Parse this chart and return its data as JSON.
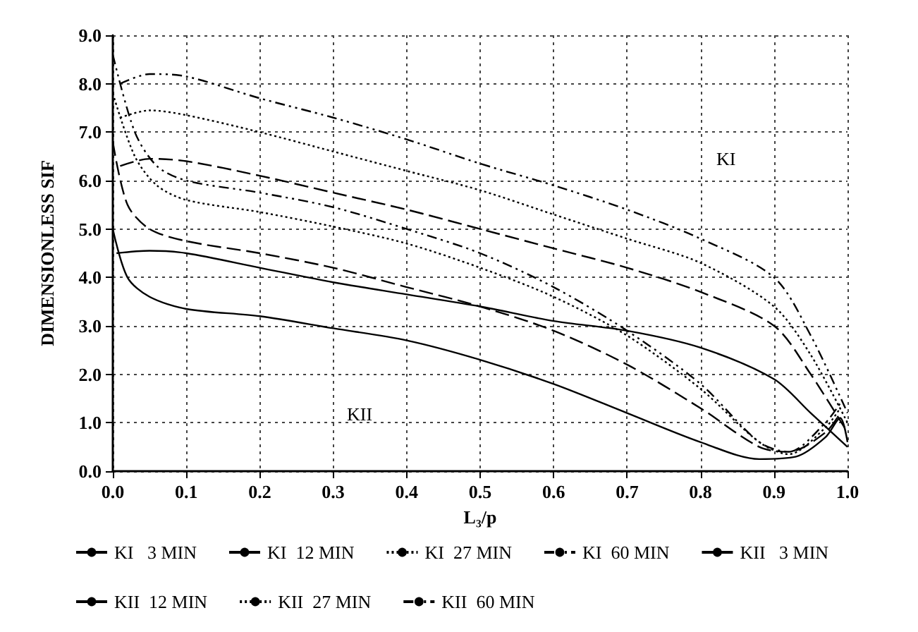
{
  "chart_data": {
    "type": "line",
    "xlabel": "L₃/p",
    "ylabel": "DIMENSIONLESS SIF",
    "xlim": [
      0,
      1
    ],
    "ylim": [
      0,
      9
    ],
    "xticks": [
      {
        "value": 0,
        "label": "0.0"
      },
      {
        "value": 0.1,
        "label": "0.1"
      },
      {
        "value": 0.2,
        "label": "0.2"
      },
      {
        "value": 0.3,
        "label": "0.3"
      },
      {
        "value": 0.4,
        "label": "0.4"
      },
      {
        "value": 0.5,
        "label": "0.5"
      },
      {
        "value": 0.6,
        "label": "0.6"
      },
      {
        "value": 0.7,
        "label": "0.7"
      },
      {
        "value": 0.8,
        "label": "0.8"
      },
      {
        "value": 0.9,
        "label": "0.9"
      },
      {
        "value": 1,
        "label": "1.0"
      }
    ],
    "yticks": [
      {
        "value": 0,
        "label": "0.0"
      },
      {
        "value": 1,
        "label": "1.0"
      },
      {
        "value": 2,
        "label": "2.0"
      },
      {
        "value": 3,
        "label": "3.0"
      },
      {
        "value": 4,
        "label": "4.0"
      },
      {
        "value": 5,
        "label": "5.0"
      },
      {
        "value": 6,
        "label": "6.0"
      },
      {
        "value": 7,
        "label": "7.0"
      },
      {
        "value": 8,
        "label": "8.0"
      },
      {
        "value": 9,
        "label": "9.0"
      }
    ],
    "grid": true,
    "legend": "bottom",
    "marker": "none",
    "annotations": [
      "KI",
      "KII"
    ],
    "series": [
      {
        "name": "KI   3 MIN",
        "color": "#000000",
        "line_style": "solid",
        "x": [
          0.005,
          0.05,
          0.1,
          0.2,
          0.3,
          0.4,
          0.5,
          0.6,
          0.7,
          0.8,
          0.9,
          0.95,
          1.0
        ],
        "values": [
          4.5,
          4.55,
          4.5,
          4.2,
          3.9,
          3.65,
          3.4,
          3.1,
          2.9,
          2.55,
          1.9,
          1.2,
          0.5
        ]
      },
      {
        "name": "KI  12 MIN",
        "color": "#000000",
        "line_style": "dashed",
        "x": [
          0.01,
          0.05,
          0.1,
          0.2,
          0.3,
          0.4,
          0.5,
          0.6,
          0.7,
          0.8,
          0.9,
          0.95,
          1.0
        ],
        "values": [
          6.3,
          6.45,
          6.4,
          6.1,
          5.75,
          5.4,
          5.0,
          4.6,
          4.2,
          3.7,
          3.0,
          2.0,
          0.8
        ]
      },
      {
        "name": "KI  27 MIN",
        "color": "#000000",
        "line_style": "dotted",
        "x": [
          0.01,
          0.05,
          0.1,
          0.2,
          0.3,
          0.4,
          0.5,
          0.6,
          0.7,
          0.8,
          0.9,
          0.95,
          1.0
        ],
        "values": [
          7.3,
          7.45,
          7.35,
          7.0,
          6.6,
          6.2,
          5.8,
          5.3,
          4.8,
          4.3,
          3.4,
          2.4,
          1.0
        ]
      },
      {
        "name": "KI  60 MIN",
        "color": "#000000",
        "line_style": "dashdot",
        "x": [
          0.01,
          0.05,
          0.1,
          0.2,
          0.3,
          0.4,
          0.5,
          0.6,
          0.7,
          0.8,
          0.9,
          0.95,
          1.0
        ],
        "values": [
          8.0,
          8.2,
          8.15,
          7.7,
          7.3,
          6.85,
          6.35,
          5.9,
          5.4,
          4.8,
          4.0,
          2.8,
          1.2
        ]
      },
      {
        "name": "KII   3 MIN",
        "color": "#000000",
        "line_style": "solid",
        "x": [
          0,
          0.02,
          0.05,
          0.1,
          0.2,
          0.3,
          0.4,
          0.5,
          0.6,
          0.7,
          0.8,
          0.88,
          0.93,
          0.97,
          0.99,
          1.0
        ],
        "values": [
          5.0,
          4.0,
          3.6,
          3.35,
          3.2,
          2.95,
          2.7,
          2.3,
          1.8,
          1.2,
          0.6,
          0.25,
          0.3,
          0.7,
          1.1,
          0.6
        ]
      },
      {
        "name": "KII  12 MIN",
        "color": "#000000",
        "line_style": "dashed",
        "x": [
          0,
          0.02,
          0.05,
          0.1,
          0.2,
          0.3,
          0.4,
          0.5,
          0.6,
          0.7,
          0.8,
          0.88,
          0.92,
          0.97,
          0.99
        ],
        "values": [
          6.8,
          5.5,
          5.0,
          4.75,
          4.5,
          4.2,
          3.8,
          3.4,
          2.9,
          2.2,
          1.3,
          0.5,
          0.4,
          0.8,
          1.2
        ]
      },
      {
        "name": "KII  27 MIN",
        "color": "#000000",
        "line_style": "dotted",
        "x": [
          0,
          0.03,
          0.06,
          0.1,
          0.2,
          0.3,
          0.4,
          0.5,
          0.6,
          0.7,
          0.8,
          0.88,
          0.92,
          0.97,
          0.99
        ],
        "values": [
          7.8,
          6.5,
          5.9,
          5.6,
          5.35,
          5.05,
          4.7,
          4.2,
          3.6,
          2.8,
          1.7,
          0.6,
          0.35,
          0.9,
          1.3
        ]
      },
      {
        "name": "KII  60 MIN",
        "color": "#000000",
        "line_style": "dashdot",
        "x": [
          0,
          0.03,
          0.06,
          0.1,
          0.2,
          0.3,
          0.4,
          0.5,
          0.6,
          0.7,
          0.8,
          0.88,
          0.92,
          0.97,
          0.99
        ],
        "values": [
          8.6,
          7.0,
          6.3,
          6.0,
          5.75,
          5.45,
          5.0,
          4.5,
          3.8,
          2.9,
          1.8,
          0.6,
          0.4,
          1.0,
          1.4
        ]
      }
    ]
  }
}
